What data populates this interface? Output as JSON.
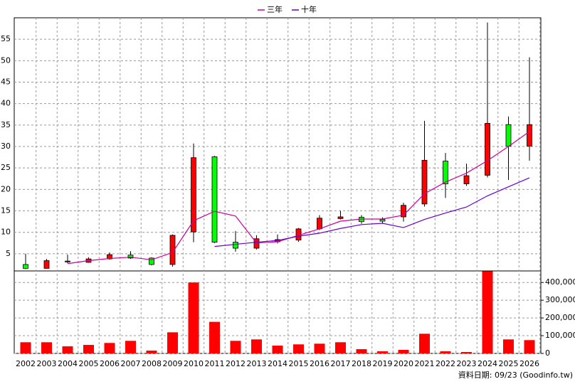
{
  "chart_data": {
    "type": "candlestick",
    "categories": [
      "2002",
      "2003",
      "2004",
      "2005",
      "2006",
      "2007",
      "2008",
      "2009",
      "2010",
      "2011",
      "2012",
      "2013",
      "2014",
      "2015",
      "2016",
      "2017",
      "2018",
      "2019",
      "2020",
      "2021",
      "2022",
      "2023",
      "2024",
      "2025",
      "2026"
    ],
    "open": [
      2.5,
      1.6,
      3.1,
      3.0,
      3.8,
      4.7,
      4.0,
      2.5,
      10.1,
      27.6,
      7.7,
      6.3,
      7.8,
      8.2,
      10.8,
      13.2,
      13.5,
      13.0,
      13.6,
      16.6,
      26.6,
      21.3,
      23.3,
      35.1,
      30.1
    ],
    "high": [
      5.0,
      3.8,
      4.8,
      4.2,
      5.3,
      5.6,
      4.2,
      9.5,
      30.7,
      27.8,
      10.3,
      9.3,
      9.5,
      11.0,
      14.0,
      15.0,
      14.0,
      13.5,
      16.9,
      36.0,
      28.5,
      26.0,
      58.9,
      37.0,
      50.8
    ],
    "low": [
      1.4,
      1.5,
      2.8,
      2.9,
      3.6,
      3.8,
      2.3,
      2.0,
      7.7,
      7.5,
      5.5,
      6.0,
      7.4,
      7.8,
      10.5,
      13.0,
      12.0,
      12.0,
      12.5,
      16.0,
      18.0,
      20.8,
      22.8,
      22.2,
      26.7
    ],
    "close": [
      1.6,
      3.4,
      3.3,
      3.8,
      4.8,
      4.0,
      2.5,
      9.3,
      27.4,
      7.7,
      6.3,
      8.5,
      8.3,
      10.8,
      13.3,
      13.6,
      12.5,
      12.6,
      16.3,
      26.8,
      21.3,
      23.2,
      35.4,
      30.1,
      35.1
    ],
    "up_color": "#ff0000",
    "down_color": "#00ff00",
    "series": [
      {
        "name": "三年",
        "color": "#cc0099",
        "values": [
          null,
          null,
          2.7,
          3.4,
          3.9,
          4.2,
          3.6,
          5.3,
          12.7,
          14.9,
          13.8,
          7.5,
          7.8,
          9.3,
          10.8,
          12.6,
          13.1,
          13.1,
          14.0,
          19.0,
          21.7,
          23.8,
          26.7,
          30.0,
          33.5
        ]
      },
      {
        "name": "十年",
        "color": "#6600cc",
        "values": [
          null,
          null,
          null,
          null,
          null,
          null,
          null,
          null,
          null,
          6.7,
          7.2,
          7.7,
          8.1,
          9.1,
          9.8,
          10.9,
          11.8,
          12.1,
          11.1,
          13.0,
          14.5,
          15.9,
          18.5,
          20.6,
          22.7
        ]
      }
    ],
    "ylim": [
      1,
      60
    ],
    "yticks": [
      5,
      10,
      15,
      20,
      25,
      30,
      35,
      40,
      45,
      50,
      55
    ],
    "grid": true,
    "volume": {
      "color": "#ff0000",
      "values": [
        63000,
        63000,
        40000,
        48000,
        59000,
        71000,
        16000,
        119000,
        400000,
        178000,
        71000,
        79000,
        44000,
        51000,
        55000,
        63000,
        24000,
        12000,
        20000,
        111000,
        12000,
        8000,
        463000,
        79000,
        75000
      ],
      "ylim": [
        0,
        465000
      ],
      "yticks": [
        0,
        {
          "value": 100000,
          "label": "100,000"
        },
        {
          "value": 200000,
          "label": "200,000"
        },
        {
          "value": 300000,
          "label": "300,000"
        },
        {
          "value": 400000,
          "label": "400,000"
        }
      ]
    },
    "note": "資料日期: 09/23 (Goodinfo.tw)"
  }
}
